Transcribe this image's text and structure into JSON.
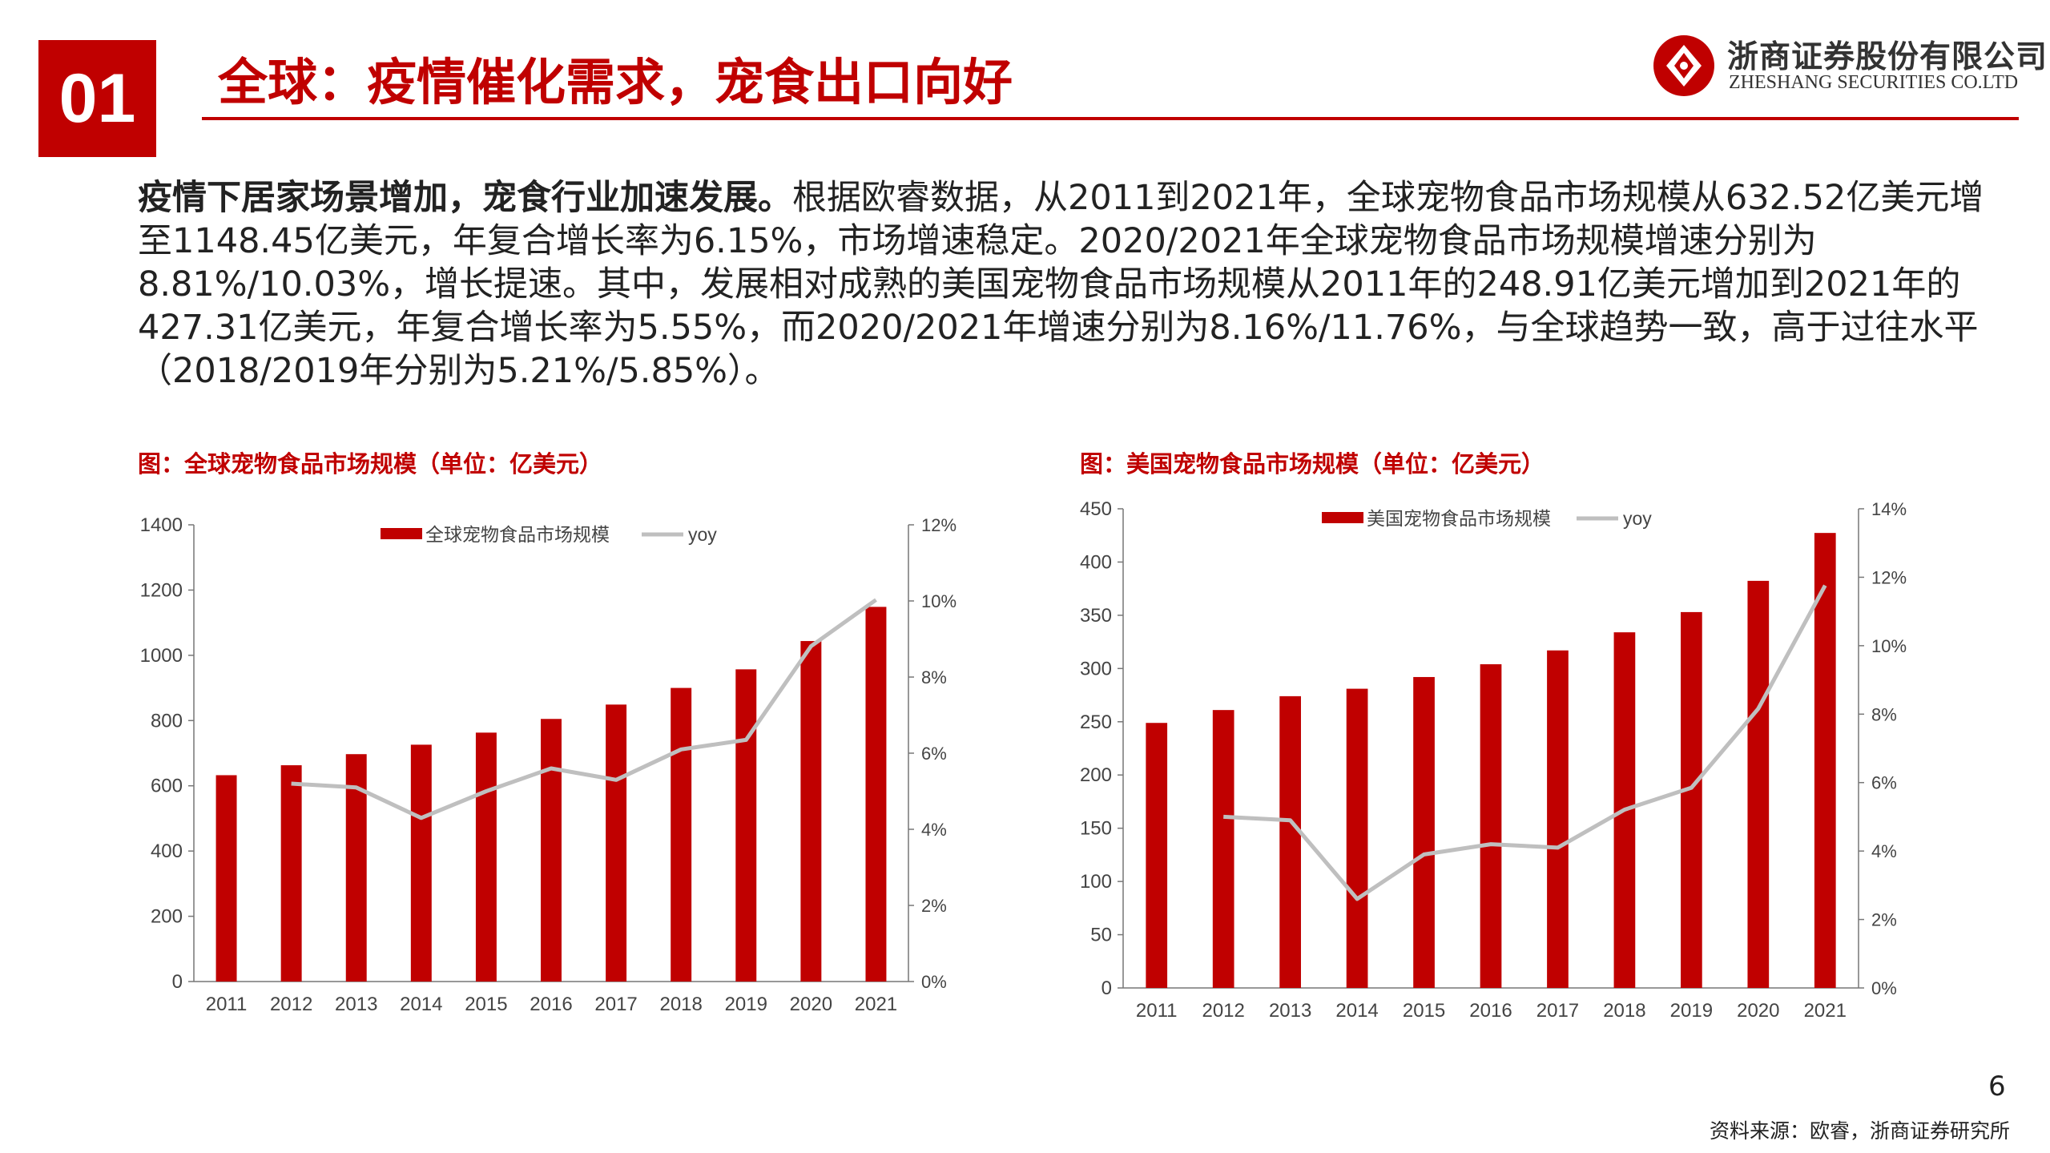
{
  "header": {
    "badge": "01",
    "title": "全球：疫情催化需求，宠食出口向好",
    "logo_cn": "浙商证券股份有限公司",
    "logo_en": "ZHESHANG SECURITIES CO.LTD"
  },
  "body": {
    "lead": "疫情下居家场景增加，宠食行业加速发展。",
    "text": "根据欧睿数据，从2011到2021年，全球宠物食品市场规模从632.52亿美元增至1148.45亿美元，年复合增长率为6.15%，市场增速稳定。2020/2021年全球宠物食品市场规模增速分别为8.81%/10.03%，增长提速。其中，发展相对成熟的美国宠物食品市场规模从2011年的248.91亿美元增加到2021年的427.31亿美元，年复合增长率为5.55%，而2020/2021年增速分别为8.16%/11.76%，与全球趋势一致，高于过往水平（2018/2019年分别为5.21%/5.85%）。"
  },
  "colors": {
    "accent": "#c00000",
    "line": "#bfbfbf"
  },
  "chart_data": [
    {
      "type": "bar",
      "title": "图：全球宠物食品市场规模（单位：亿美元）",
      "categories": [
        "2011",
        "2012",
        "2013",
        "2014",
        "2015",
        "2016",
        "2017",
        "2018",
        "2019",
        "2020",
        "2021"
      ],
      "series": [
        {
          "name": "全球宠物食品市场规模",
          "type": "bar",
          "axis": "left",
          "values": [
            632.52,
            663,
            697,
            726,
            763,
            805,
            849,
            900,
            957,
            1043.74,
            1148.45
          ]
        },
        {
          "name": "yoy",
          "type": "line",
          "axis": "right",
          "values": [
            null,
            5.2,
            5.1,
            4.3,
            5.0,
            5.6,
            5.3,
            6.1,
            6.35,
            8.81,
            10.03
          ]
        }
      ],
      "y_left": {
        "min": 0,
        "max": 1400,
        "ticks": [
          "0",
          "200",
          "400",
          "600",
          "800",
          "1000",
          "1200",
          "1400"
        ]
      },
      "y_right": {
        "min": 0,
        "max": 12,
        "ticks": [
          "0%",
          "2%",
          "4%",
          "6%",
          "8%",
          "10%",
          "12%"
        ]
      },
      "legend": "top-center"
    },
    {
      "type": "bar",
      "title": "图：美国宠物食品市场规模（单位：亿美元）",
      "categories": [
        "2011",
        "2012",
        "2013",
        "2014",
        "2015",
        "2016",
        "2017",
        "2018",
        "2019",
        "2020",
        "2021"
      ],
      "series": [
        {
          "name": "美国宠物食品市场规模",
          "type": "bar",
          "axis": "left",
          "values": [
            248.91,
            261,
            274,
            281,
            292,
            304,
            317,
            334,
            353,
            382.34,
            427.31
          ]
        },
        {
          "name": "yoy",
          "type": "line",
          "axis": "right",
          "values": [
            null,
            5.0,
            4.9,
            2.6,
            3.9,
            4.2,
            4.1,
            5.21,
            5.85,
            8.16,
            11.76
          ]
        }
      ],
      "y_left": {
        "min": 0,
        "max": 450,
        "ticks": [
          "0",
          "50",
          "100",
          "150",
          "200",
          "250",
          "300",
          "350",
          "400",
          "450"
        ]
      },
      "y_right": {
        "min": 0,
        "max": 14,
        "ticks": [
          "0%",
          "2%",
          "4%",
          "6%",
          "8%",
          "10%",
          "12%",
          "14%"
        ]
      },
      "legend": "top-center"
    }
  ],
  "footer": {
    "page_number": "6",
    "source": "资料来源：欧睿，浙商证券研究所"
  }
}
